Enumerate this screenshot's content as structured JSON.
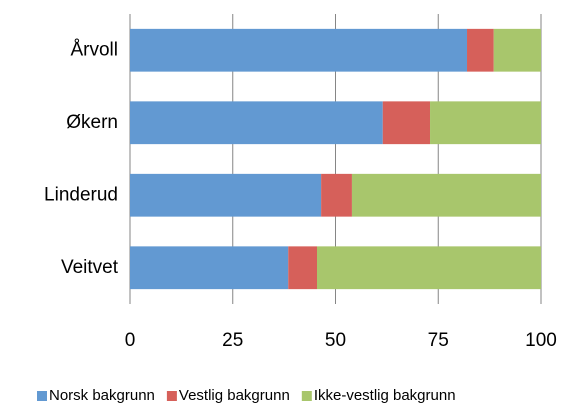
{
  "chart_data": {
    "type": "bar",
    "orientation": "horizontal",
    "stacked": true,
    "categories": [
      "Årvoll",
      "Økern",
      "Linderud",
      "Veitvet"
    ],
    "series": [
      {
        "name": "Norsk bakgrunn",
        "color": "#6299d2",
        "values": [
          82,
          61.5,
          46.5,
          38.5
        ]
      },
      {
        "name": "Vestlig bakgrunn",
        "color": "#d6605a",
        "values": [
          6.5,
          11.5,
          7.5,
          7
        ]
      },
      {
        "name": "Ikke-vestlig bakgrunn",
        "color": "#a8c66c",
        "values": [
          11.5,
          27,
          46,
          54.5
        ]
      }
    ],
    "xlim": [
      0,
      100
    ],
    "xticks": [
      0,
      25,
      50,
      75,
      100
    ],
    "grid": true,
    "legend": "bottom"
  }
}
